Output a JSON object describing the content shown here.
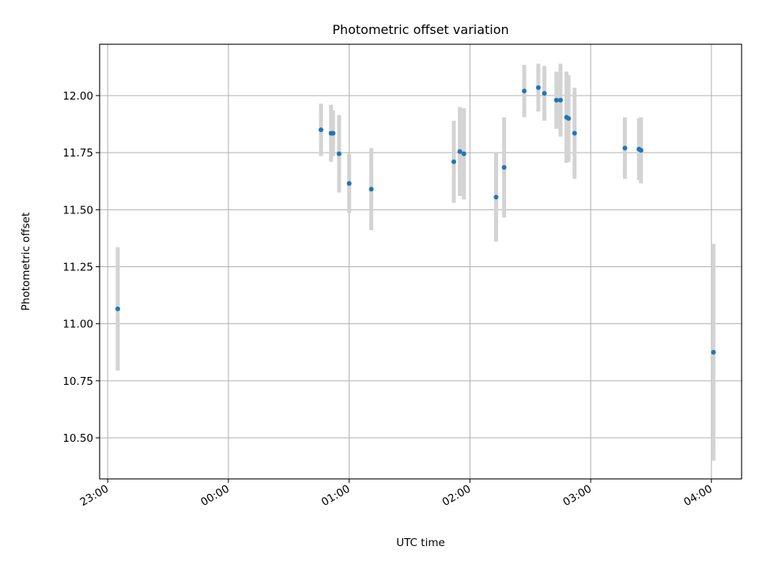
{
  "chart_data": {
    "type": "scatter",
    "title": "Photometric offset variation",
    "xlabel": "UTC time",
    "ylabel": "Photometric offset",
    "grid": true,
    "xlim": [
      "22:56",
      "04:15"
    ],
    "ylim": [
      10.32,
      12.225
    ],
    "x_ticks": [
      "23:00",
      "00:00",
      "01:00",
      "02:00",
      "03:00",
      "04:00"
    ],
    "y_ticks": [
      "10.50",
      "10.75",
      "11.00",
      "11.25",
      "11.50",
      "11.75",
      "12.00"
    ],
    "colors": {
      "point": "#1f77b4",
      "errorbar": "#d3d3d3",
      "grid": "#b0b0b0"
    },
    "points": [
      {
        "x": "23:05",
        "y": 11.065,
        "err": 0.27
      },
      {
        "x": "00:46",
        "y": 11.85,
        "err": 0.115
      },
      {
        "x": "00:51",
        "y": 11.835,
        "err": 0.125
      },
      {
        "x": "00:52",
        "y": 11.835,
        "err": 0.1
      },
      {
        "x": "00:55",
        "y": 11.745,
        "err": 0.17
      },
      {
        "x": "01:00",
        "y": 11.615,
        "err": 0.13
      },
      {
        "x": "01:11",
        "y": 11.59,
        "err": 0.18
      },
      {
        "x": "01:52",
        "y": 11.71,
        "err": 0.18
      },
      {
        "x": "01:55",
        "y": 11.755,
        "err": 0.195
      },
      {
        "x": "01:57",
        "y": 11.745,
        "err": 0.2
      },
      {
        "x": "02:13",
        "y": 11.555,
        "err": 0.195
      },
      {
        "x": "02:17",
        "y": 11.685,
        "err": 0.22
      },
      {
        "x": "02:27",
        "y": 12.02,
        "err": 0.115
      },
      {
        "x": "02:34",
        "y": 12.035,
        "err": 0.105
      },
      {
        "x": "02:37",
        "y": 12.01,
        "err": 0.12
      },
      {
        "x": "02:43",
        "y": 11.98,
        "err": 0.125
      },
      {
        "x": "02:45",
        "y": 11.98,
        "err": 0.16
      },
      {
        "x": "02:48",
        "y": 11.905,
        "err": 0.2
      },
      {
        "x": "02:49",
        "y": 11.9,
        "err": 0.19
      },
      {
        "x": "02:52",
        "y": 11.835,
        "err": 0.2
      },
      {
        "x": "03:17",
        "y": 11.77,
        "err": 0.135
      },
      {
        "x": "03:24",
        "y": 11.765,
        "err": 0.135
      },
      {
        "x": "03:25",
        "y": 11.76,
        "err": 0.145
      },
      {
        "x": "04:01",
        "y": 10.875,
        "err": 0.475
      }
    ]
  }
}
